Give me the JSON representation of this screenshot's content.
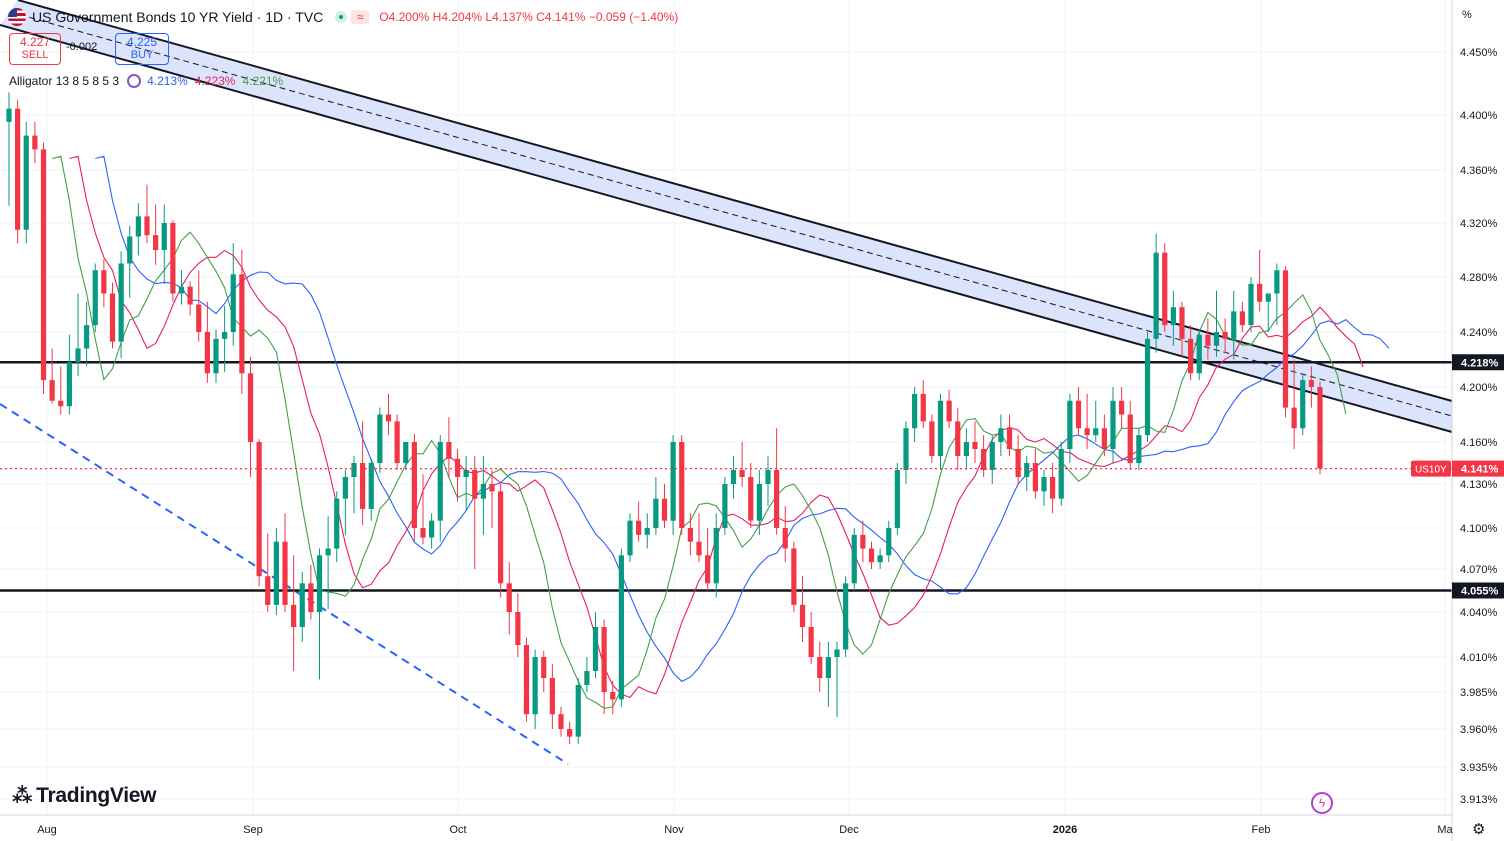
{
  "header": {
    "title": "US Government Bonds 10 YR Yield · 1D · TVC",
    "open": "O4.200%",
    "high": "H4.204%",
    "low": "L4.137%",
    "close": "C4.141%",
    "change": "−0.059 (−1.40%)"
  },
  "trade": {
    "sell_price": "4.227",
    "sell_label": "SELL",
    "spread": "-0.002",
    "buy_price": "4.225",
    "buy_label": "BUY"
  },
  "indicator": {
    "name": "Alligator 13 8 5 8 5 3",
    "jaw": "4.213%",
    "teeth": "4.223%",
    "lips": "4.221%"
  },
  "brand": "TradingView",
  "axis_unit": "%",
  "colors": {
    "up": "#089981",
    "down": "#f23645",
    "jaw": "#2962ff",
    "teeth": "#e91e63",
    "lips": "#43a047",
    "channel_fill": "#d6dffb"
  },
  "chart_data": {
    "type": "candlestick",
    "symbol": "US10Y",
    "last_price_label": "4.141%",
    "ylim": [
      3.905,
      4.47
    ],
    "y_ticks": [
      "4.450%",
      "4.400%",
      "4.360%",
      "4.320%",
      "4.280%",
      "4.240%",
      "4.200%",
      "4.160%",
      "4.130%",
      "4.100%",
      "4.070%",
      "4.040%",
      "4.010%",
      "3.985%",
      "3.960%",
      "3.935%",
      "3.913%"
    ],
    "x_ticks": [
      "Aug",
      "Sep",
      "Oct",
      "Nov",
      "Dec",
      "2026",
      "Feb",
      "Ma"
    ],
    "horizontal_levels": [
      {
        "value": 4.218,
        "label": "4.218%"
      },
      {
        "value": 4.055,
        "label": "4.055%"
      }
    ],
    "last_price_line": 4.141,
    "grid": true,
    "candles": [
      [
        4.395,
        4.418,
        4.333,
        4.405
      ],
      [
        4.405,
        4.412,
        4.305,
        4.315
      ],
      [
        4.315,
        4.395,
        4.305,
        4.385
      ],
      [
        4.385,
        4.395,
        4.365,
        4.375
      ],
      [
        4.375,
        4.38,
        4.195,
        4.205
      ],
      [
        4.205,
        4.228,
        4.188,
        4.19
      ],
      [
        4.19,
        4.215,
        4.18,
        4.186
      ],
      [
        4.186,
        4.238,
        4.18,
        4.218
      ],
      [
        4.218,
        4.268,
        4.208,
        4.228
      ],
      [
        4.228,
        4.262,
        4.215,
        4.245
      ],
      [
        4.245,
        4.29,
        4.24,
        4.285
      ],
      [
        4.285,
        4.293,
        4.258,
        4.268
      ],
      [
        4.268,
        4.276,
        4.228,
        4.233
      ],
      [
        4.233,
        4.299,
        4.221,
        4.29
      ],
      [
        4.29,
        4.318,
        4.265,
        4.31
      ],
      [
        4.31,
        4.335,
        4.296,
        4.325
      ],
      [
        4.325,
        4.349,
        4.305,
        4.311
      ],
      [
        4.311,
        4.334,
        4.289,
        4.3
      ],
      [
        4.3,
        4.334,
        4.275,
        4.32
      ],
      [
        4.32,
        4.322,
        4.262,
        4.268
      ],
      [
        4.268,
        4.285,
        4.26,
        4.273
      ],
      [
        4.273,
        4.277,
        4.252,
        4.26
      ],
      [
        4.26,
        4.285,
        4.233,
        4.24
      ],
      [
        4.24,
        4.262,
        4.203,
        4.21
      ],
      [
        4.21,
        4.242,
        4.203,
        4.235
      ],
      [
        4.235,
        4.259,
        4.211,
        4.24
      ],
      [
        4.24,
        4.305,
        4.23,
        4.282
      ],
      [
        4.282,
        4.3,
        4.195,
        4.21
      ],
      [
        4.21,
        4.222,
        4.135,
        4.16
      ],
      [
        4.16,
        4.162,
        4.058,
        4.065
      ],
      [
        4.065,
        4.096,
        4.04,
        4.045
      ],
      [
        4.045,
        4.1,
        4.038,
        4.09
      ],
      [
        4.09,
        4.11,
        4.04,
        4.045
      ],
      [
        4.045,
        4.08,
        4.0,
        4.03
      ],
      [
        4.03,
        4.068,
        4.02,
        4.06
      ],
      [
        4.06,
        4.073,
        4.035,
        4.04
      ],
      [
        4.04,
        4.085,
        3.994,
        4.08
      ],
      [
        4.08,
        4.108,
        4.042,
        4.085
      ],
      [
        4.085,
        4.125,
        4.075,
        4.12
      ],
      [
        4.12,
        4.14,
        4.095,
        4.135
      ],
      [
        4.135,
        4.15,
        4.11,
        4.145
      ],
      [
        4.145,
        4.175,
        4.102,
        4.113
      ],
      [
        4.113,
        4.148,
        4.105,
        4.145
      ],
      [
        4.145,
        4.185,
        4.138,
        4.18
      ],
      [
        4.18,
        4.195,
        4.165,
        4.175
      ],
      [
        4.175,
        4.18,
        4.14,
        4.145
      ],
      [
        4.145,
        4.16,
        4.14,
        4.16
      ],
      [
        4.16,
        4.166,
        4.09,
        4.1
      ],
      [
        4.1,
        4.137,
        4.088,
        4.093
      ],
      [
        4.093,
        4.11,
        4.085,
        4.105
      ],
      [
        4.105,
        4.165,
        4.09,
        4.16
      ],
      [
        4.16,
        4.178,
        4.135,
        4.148
      ],
      [
        4.148,
        4.155,
        4.118,
        4.135
      ],
      [
        4.135,
        4.15,
        4.112,
        4.14
      ],
      [
        4.14,
        4.15,
        4.07,
        4.12
      ],
      [
        4.12,
        4.15,
        4.095,
        4.13
      ],
      [
        4.13,
        4.14,
        4.1,
        4.125
      ],
      [
        4.125,
        4.13,
        4.05,
        4.06
      ],
      [
        4.06,
        4.075,
        4.025,
        4.04
      ],
      [
        4.04,
        4.053,
        4.01,
        4.018
      ],
      [
        4.018,
        4.023,
        3.965,
        3.97
      ],
      [
        3.97,
        4.015,
        3.96,
        4.01
      ],
      [
        4.01,
        4.014,
        3.985,
        3.995
      ],
      [
        3.995,
        4.005,
        3.96,
        3.97
      ],
      [
        3.97,
        3.975,
        3.955,
        3.96
      ],
      [
        3.96,
        3.965,
        3.95,
        3.955
      ],
      [
        3.955,
        3.995,
        3.95,
        3.99
      ],
      [
        3.99,
        4.01,
        3.985,
        4.0
      ],
      [
        4.0,
        4.04,
        3.995,
        4.03
      ],
      [
        4.03,
        4.035,
        3.97,
        3.985
      ],
      [
        3.985,
        3.993,
        3.97,
        3.98
      ],
      [
        3.98,
        4.085,
        3.975,
        4.08
      ],
      [
        4.08,
        4.11,
        4.075,
        4.105
      ],
      [
        4.105,
        4.118,
        4.09,
        4.095
      ],
      [
        4.095,
        4.11,
        4.085,
        4.1
      ],
      [
        4.1,
        4.135,
        4.095,
        4.12
      ],
      [
        4.12,
        4.13,
        4.1,
        4.105
      ],
      [
        4.105,
        4.165,
        4.095,
        4.16
      ],
      [
        4.16,
        4.165,
        4.095,
        4.1
      ],
      [
        4.1,
        4.11,
        4.08,
        4.09
      ],
      [
        4.09,
        4.11,
        4.075,
        4.08
      ],
      [
        4.08,
        4.1,
        4.055,
        4.06
      ],
      [
        4.06,
        4.11,
        4.05,
        4.1
      ],
      [
        4.1,
        4.135,
        4.095,
        4.13
      ],
      [
        4.13,
        4.15,
        4.12,
        4.14
      ],
      [
        4.14,
        4.16,
        4.128,
        4.135
      ],
      [
        4.135,
        4.145,
        4.1,
        4.105
      ],
      [
        4.105,
        4.14,
        4.095,
        4.13
      ],
      [
        4.13,
        4.15,
        4.115,
        4.14
      ],
      [
        4.14,
        4.17,
        4.095,
        4.1
      ],
      [
        4.1,
        4.115,
        4.075,
        4.085
      ],
      [
        4.085,
        4.09,
        4.04,
        4.045
      ],
      [
        4.045,
        4.065,
        4.02,
        4.03
      ],
      [
        4.03,
        4.04,
        4.005,
        4.01
      ],
      [
        4.01,
        4.02,
        3.985,
        3.995
      ],
      [
        3.995,
        4.02,
        3.975,
        4.01
      ],
      [
        4.01,
        4.02,
        3.968,
        4.015
      ],
      [
        4.015,
        4.065,
        4.01,
        4.06
      ],
      [
        4.06,
        4.1,
        4.055,
        4.095
      ],
      [
        4.095,
        4.105,
        4.075,
        4.085
      ],
      [
        4.085,
        4.09,
        4.07,
        4.075
      ],
      [
        4.075,
        4.085,
        4.07,
        4.08
      ],
      [
        4.08,
        4.105,
        4.075,
        4.1
      ],
      [
        4.1,
        4.145,
        4.095,
        4.14
      ],
      [
        4.14,
        4.175,
        4.13,
        4.17
      ],
      [
        4.17,
        4.2,
        4.16,
        4.195
      ],
      [
        4.195,
        4.205,
        4.17,
        4.175
      ],
      [
        4.175,
        4.18,
        4.145,
        4.15
      ],
      [
        4.15,
        4.195,
        4.14,
        4.19
      ],
      [
        4.19,
        4.198,
        4.17,
        4.175
      ],
      [
        4.175,
        4.185,
        4.14,
        4.15
      ],
      [
        4.15,
        4.17,
        4.14,
        4.16
      ],
      [
        4.16,
        4.175,
        4.145,
        4.155
      ],
      [
        4.155,
        4.165,
        4.135,
        4.14
      ],
      [
        4.14,
        4.165,
        4.13,
        4.16
      ],
      [
        4.16,
        4.18,
        4.15,
        4.17
      ],
      [
        4.17,
        4.18,
        4.15,
        4.155
      ],
      [
        4.155,
        4.165,
        4.13,
        4.135
      ],
      [
        4.135,
        4.15,
        4.125,
        4.145
      ],
      [
        4.145,
        4.155,
        4.12,
        4.125
      ],
      [
        4.125,
        4.14,
        4.115,
        4.135
      ],
      [
        4.135,
        4.145,
        4.11,
        4.12
      ],
      [
        4.12,
        4.16,
        4.115,
        4.155
      ],
      [
        4.155,
        4.195,
        4.145,
        4.19
      ],
      [
        4.19,
        4.2,
        4.165,
        4.17
      ],
      [
        4.17,
        4.195,
        4.155,
        4.165
      ],
      [
        4.165,
        4.19,
        4.16,
        4.17
      ],
      [
        4.17,
        4.18,
        4.15,
        4.155
      ],
      [
        4.155,
        4.2,
        4.145,
        4.19
      ],
      [
        4.19,
        4.2,
        4.17,
        4.18
      ],
      [
        4.18,
        4.19,
        4.14,
        4.145
      ],
      [
        4.145,
        4.17,
        4.14,
        4.165
      ],
      [
        4.165,
        4.24,
        4.16,
        4.235
      ],
      [
        4.235,
        4.312,
        4.225,
        4.298
      ],
      [
        4.298,
        4.305,
        4.24,
        4.245
      ],
      [
        4.245,
        4.27,
        4.23,
        4.258
      ],
      [
        4.258,
        4.262,
        4.222,
        4.235
      ],
      [
        4.235,
        4.245,
        4.205,
        4.21
      ],
      [
        4.21,
        4.24,
        4.205,
        4.238
      ],
      [
        4.238,
        4.25,
        4.22,
        4.23
      ],
      [
        4.23,
        4.27,
        4.222,
        4.24
      ],
      [
        4.24,
        4.25,
        4.225,
        4.235
      ],
      [
        4.235,
        4.27,
        4.22,
        4.255
      ],
      [
        4.255,
        4.262,
        4.24,
        4.245
      ],
      [
        4.245,
        4.28,
        4.24,
        4.275
      ],
      [
        4.275,
        4.3,
        4.255,
        4.262
      ],
      [
        4.262,
        4.268,
        4.24,
        4.268
      ],
      [
        4.268,
        4.29,
        4.245,
        4.285
      ],
      [
        4.285,
        4.288,
        4.178,
        4.185
      ],
      [
        4.185,
        4.22,
        4.155,
        4.17
      ],
      [
        4.17,
        4.21,
        4.165,
        4.205
      ],
      [
        4.205,
        4.215,
        4.185,
        4.2
      ],
      [
        4.2,
        4.204,
        4.137,
        4.141
      ]
    ]
  }
}
